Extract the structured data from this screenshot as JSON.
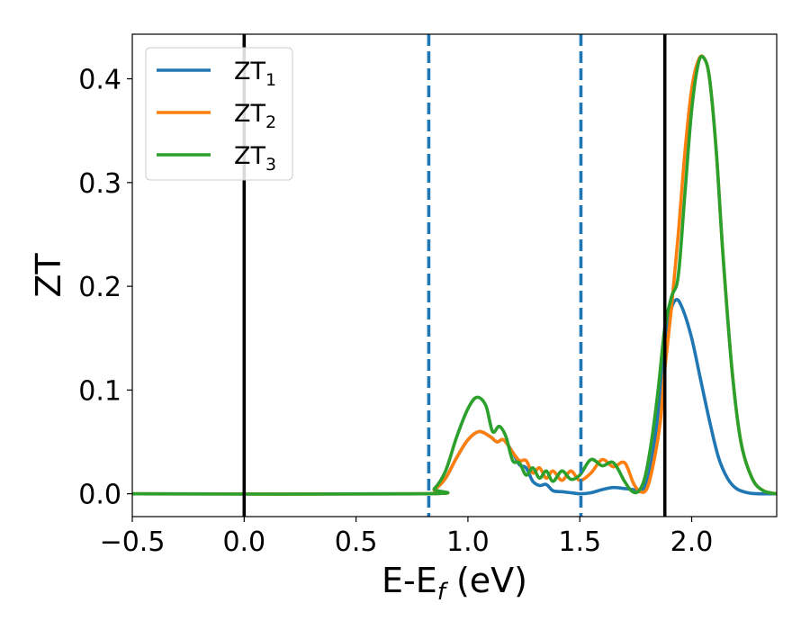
{
  "chart_data": {
    "type": "line",
    "xlabel": "E-E",
    "xlabel_sub": "f",
    "xlabel_unit": " (eV)",
    "ylabel": "ZT",
    "xlim": [
      -0.5,
      2.38
    ],
    "ylim": [
      -0.022,
      0.443
    ],
    "xticks": [
      -0.5,
      0.0,
      0.5,
      1.0,
      1.5,
      2.0
    ],
    "xtick_labels": [
      "−0.5",
      "0.0",
      "0.5",
      "1.0",
      "1.5",
      "2.0"
    ],
    "yticks": [
      0.0,
      0.1,
      0.2,
      0.3,
      0.4
    ],
    "ytick_labels": [
      "0.0",
      "0.1",
      "0.2",
      "0.3",
      "0.4"
    ],
    "grid": false,
    "legend_position": "top-left",
    "vlines": [
      {
        "x": 0.0,
        "style": "solid",
        "color": "#000000"
      },
      {
        "x": 0.825,
        "style": "dashed",
        "color": "#1f77b4"
      },
      {
        "x": 1.505,
        "style": "dashed",
        "color": "#1f77b4"
      },
      {
        "x": 1.88,
        "style": "solid",
        "color": "#000000"
      }
    ],
    "series": [
      {
        "name": "ZT",
        "name_sub": "1",
        "color": "#1f77b4",
        "x": [
          -0.5,
          0.8,
          0.85,
          0.9,
          0.95,
          1.0,
          1.05,
          1.1,
          1.13,
          1.16,
          1.2,
          1.23,
          1.26,
          1.29,
          1.32,
          1.35,
          1.38,
          1.42,
          1.46,
          1.5,
          1.55,
          1.6,
          1.65,
          1.7,
          1.74,
          1.78,
          1.81,
          1.84,
          1.87,
          1.9,
          1.93,
          1.96,
          2.0,
          2.04,
          2.08,
          2.12,
          2.16,
          2.2,
          2.25,
          2.3,
          2.38
        ],
        "y": [
          0.0,
          0.0,
          0.004,
          0.015,
          0.035,
          0.052,
          0.06,
          0.055,
          0.05,
          0.052,
          0.04,
          0.028,
          0.025,
          0.012,
          0.008,
          0.009,
          0.003,
          0.002,
          0.001,
          0.0,
          0.001,
          0.004,
          0.006,
          0.005,
          0.004,
          0.003,
          0.02,
          0.06,
          0.12,
          0.17,
          0.187,
          0.178,
          0.15,
          0.11,
          0.07,
          0.035,
          0.015,
          0.005,
          0.001,
          0.0,
          0.0
        ]
      },
      {
        "name": "ZT",
        "name_sub": "2",
        "color": "#ff7f0e",
        "x": [
          -0.5,
          0.8,
          0.85,
          0.9,
          0.95,
          1.0,
          1.05,
          1.1,
          1.13,
          1.16,
          1.2,
          1.23,
          1.26,
          1.29,
          1.32,
          1.35,
          1.38,
          1.42,
          1.46,
          1.5,
          1.55,
          1.6,
          1.65,
          1.7,
          1.74,
          1.77,
          1.8,
          1.83,
          1.86,
          1.88,
          1.91,
          1.94,
          1.97,
          2.0,
          2.03,
          2.055,
          2.08,
          2.11,
          2.14,
          2.18,
          2.22,
          2.27,
          2.32,
          2.38
        ],
        "y": [
          0.0,
          0.0,
          0.004,
          0.015,
          0.035,
          0.052,
          0.06,
          0.055,
          0.05,
          0.052,
          0.04,
          0.032,
          0.032,
          0.02,
          0.025,
          0.015,
          0.022,
          0.013,
          0.022,
          0.013,
          0.02,
          0.033,
          0.026,
          0.03,
          0.01,
          0.002,
          0.005,
          0.03,
          0.07,
          0.12,
          0.18,
          0.25,
          0.33,
          0.39,
          0.418,
          0.42,
          0.4,
          0.33,
          0.23,
          0.12,
          0.05,
          0.015,
          0.003,
          0.0
        ]
      },
      {
        "name": "ZT",
        "name_sub": "3",
        "color": "#2ca02c",
        "x": [
          -0.5,
          0.8,
          0.85,
          0.9,
          0.95,
          1.0,
          1.04,
          1.08,
          1.11,
          1.14,
          1.17,
          1.2,
          1.23,
          1.26,
          1.29,
          1.32,
          1.35,
          1.38,
          1.42,
          1.46,
          1.5,
          1.55,
          1.6,
          1.65,
          1.7,
          1.73,
          1.76,
          1.79,
          1.82,
          1.85,
          1.88,
          1.91,
          1.94,
          1.97,
          2.0,
          2.03,
          2.055,
          2.08,
          2.11,
          2.14,
          2.18,
          2.22,
          2.27,
          2.32,
          2.38
        ],
        "y": [
          0.0,
          0.0,
          0.005,
          0.022,
          0.055,
          0.082,
          0.093,
          0.085,
          0.06,
          0.065,
          0.055,
          0.032,
          0.03,
          0.018,
          0.025,
          0.015,
          0.022,
          0.012,
          0.022,
          0.014,
          0.018,
          0.033,
          0.027,
          0.03,
          0.012,
          0.003,
          0.002,
          0.015,
          0.05,
          0.1,
          0.16,
          0.19,
          0.21,
          0.29,
          0.37,
          0.415,
          0.42,
          0.4,
          0.33,
          0.23,
          0.12,
          0.05,
          0.015,
          0.003,
          0.0
        ]
      }
    ]
  }
}
